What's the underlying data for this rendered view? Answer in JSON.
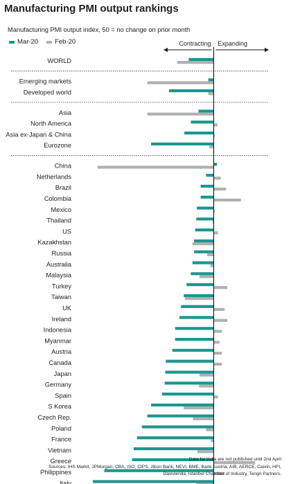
{
  "chart_data": {
    "type": "bar",
    "orientation": "horizontal",
    "title": "Manufacturing PMI output rankings",
    "subtitle": "Manufacturing PMI output index, 50 = no change on prior month",
    "legend_position": "top-left",
    "grid": false,
    "xlim": [
      25,
      60
    ],
    "xticks": [
      "25",
      "30",
      "35",
      "40",
      "45",
      "50",
      "55",
      "60"
    ],
    "reference_value": 50,
    "contracting_label": "Contracting",
    "expanding_label": "Expanding",
    "categories": [
      "WORLD",
      "Emerging markets",
      "Developed world",
      "Asia",
      "North America",
      "Asia ex-Japan & China",
      "Eurozone",
      "China",
      "Netherlands",
      "Brazil",
      "Colombia",
      "Mexico",
      "Thailand",
      "US",
      "Kazakhstan",
      "Russia",
      "Australia",
      "Malaysia",
      "Turkey",
      "Taiwan",
      "UK",
      "Ireland",
      "Indonesia",
      "Myanmar",
      "Austria",
      "Canada",
      "Japan",
      "Germany",
      "Spain",
      "S Korea",
      "Czech Rep.",
      "Poland",
      "France",
      "Vietnam",
      "Greece",
      "Philippines",
      "Italy"
    ],
    "groups": [
      1,
      2,
      4,
      30
    ],
    "series": [
      {
        "name": "Mar-20",
        "color": "#1a9690",
        "values": [
          45.4,
          49.0,
          41.8,
          47.2,
          45.8,
          44.6,
          38.5,
          50.6,
          48.6,
          47.6,
          47.6,
          46.9,
          46.8,
          46.6,
          46.4,
          46.4,
          46.1,
          45.8,
          45.0,
          44.5,
          44.0,
          43.7,
          42.9,
          42.9,
          42.4,
          41.2,
          41.1,
          41.0,
          40.5,
          38.5,
          37.8,
          36.8,
          35.9,
          35.3,
          35.0,
          29.9,
          27.8
        ]
      },
      {
        "name": "Feb-20",
        "color": "#b0b0b0",
        "values": [
          43.3,
          37.8,
          49.0,
          37.8,
          50.7,
          50.2,
          49.2,
          28.7,
          51.3,
          52.3,
          55.0,
          50.2,
          49.8,
          50.8,
          46.1,
          48.8,
          49.4,
          47.4,
          52.5,
          44.7,
          52.0,
          52.5,
          51.5,
          51.1,
          51.5,
          51.5,
          47.4,
          47.3,
          50.8,
          44.5,
          46.2,
          48.6,
          49.5,
          47.0,
          57.6,
          52.0,
          46.8
        ]
      }
    ]
  },
  "notes": {
    "availability": "Data for India are not published until 2nd April",
    "sources_line1": "Sources: IHS Markit, JPMorgan, CBA, ISO, CIPS, Jibun Bank, NEVI, BME, Bank Austria, AIB, AERCE, Caixin, HPI,",
    "sources_line2": "Davivienda, Istanbul Chamber of Industry, Tengri Partners."
  }
}
